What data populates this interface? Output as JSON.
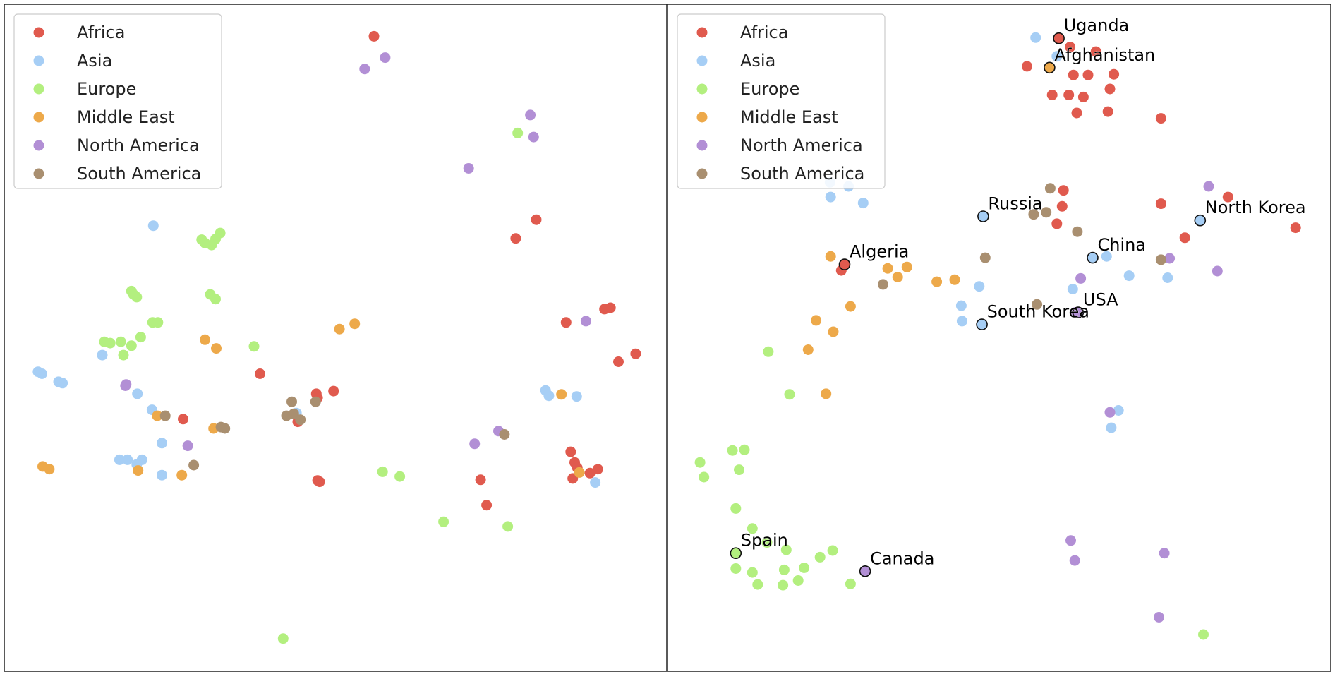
{
  "categories": [
    {
      "key": "africa",
      "label": "Africa",
      "color": "#e05a4e"
    },
    {
      "key": "asia",
      "label": "Asia",
      "color": "#a6cef5"
    },
    {
      "key": "europe",
      "label": "Europe",
      "color": "#b3ef7f"
    },
    {
      "key": "middle_east",
      "label": "Middle East",
      "color": "#eda94a"
    },
    {
      "key": "north_america",
      "label": "North America",
      "color": "#b28fd5"
    },
    {
      "key": "south_america",
      "label": "South America",
      "color": "#a98f70"
    }
  ],
  "chart_data": [
    {
      "type": "scatter",
      "title": "",
      "xlabel": "",
      "ylabel": "",
      "xlim": [
        0,
        1
      ],
      "ylim": [
        0,
        1
      ],
      "axes_ticks": "none",
      "legend_position": "top-left",
      "series": [
        {
          "category": "africa",
          "points": [
            [
              0.558,
              0.952
            ],
            [
              0.772,
              0.649
            ],
            [
              0.803,
              0.677
            ],
            [
              0.848,
              0.523
            ],
            [
              0.906,
              0.543
            ],
            [
              0.915,
              0.545
            ],
            [
              0.927,
              0.464
            ],
            [
              0.953,
              0.476
            ],
            [
              0.386,
              0.446
            ],
            [
              0.27,
              0.378
            ],
            [
              0.473,
              0.41
            ],
            [
              0.497,
              0.42
            ],
            [
              0.443,
              0.374
            ],
            [
              0.471,
              0.416
            ],
            [
              0.855,
              0.329
            ],
            [
              0.861,
              0.313
            ],
            [
              0.865,
              0.305
            ],
            [
              0.896,
              0.303
            ],
            [
              0.884,
              0.297
            ],
            [
              0.858,
              0.289
            ],
            [
              0.719,
              0.287
            ],
            [
              0.473,
              0.286
            ],
            [
              0.476,
              0.284
            ],
            [
              0.728,
              0.249
            ]
          ]
        },
        {
          "category": "asia",
          "points": [
            [
              0.225,
              0.668
            ],
            [
              0.148,
              0.474
            ],
            [
              0.051,
              0.449
            ],
            [
              0.057,
              0.446
            ],
            [
              0.082,
              0.434
            ],
            [
              0.088,
              0.432
            ],
            [
              0.201,
              0.416
            ],
            [
              0.223,
              0.392
            ],
            [
              0.441,
              0.387
            ],
            [
              0.817,
              0.421
            ],
            [
              0.822,
              0.413
            ],
            [
              0.864,
              0.412
            ],
            [
              0.238,
              0.342
            ],
            [
              0.208,
              0.317
            ],
            [
              0.174,
              0.317
            ],
            [
              0.186,
              0.317
            ],
            [
              0.2,
              0.31
            ],
            [
              0.238,
              0.294
            ],
            [
              0.892,
              0.283
            ]
          ]
        },
        {
          "category": "europe",
          "points": [
            [
              0.775,
              0.807
            ],
            [
              0.298,
              0.647
            ],
            [
              0.303,
              0.642
            ],
            [
              0.313,
              0.639
            ],
            [
              0.319,
              0.648
            ],
            [
              0.326,
              0.657
            ],
            [
              0.192,
              0.57
            ],
            [
              0.2,
              0.561
            ],
            [
              0.195,
              0.565
            ],
            [
              0.311,
              0.565
            ],
            [
              0.319,
              0.558
            ],
            [
              0.224,
              0.523
            ],
            [
              0.232,
              0.523
            ],
            [
              0.206,
              0.501
            ],
            [
              0.176,
              0.494
            ],
            [
              0.151,
              0.494
            ],
            [
              0.16,
              0.492
            ],
            [
              0.192,
              0.488
            ],
            [
              0.18,
              0.474
            ],
            [
              0.377,
              0.487
            ],
            [
              0.571,
              0.299
            ],
            [
              0.597,
              0.292
            ],
            [
              0.663,
              0.224
            ],
            [
              0.76,
              0.217
            ],
            [
              0.421,
              0.049
            ]
          ]
        },
        {
          "category": "middle_east",
          "points": [
            [
              0.506,
              0.513
            ],
            [
              0.529,
              0.521
            ],
            [
              0.303,
              0.497
            ],
            [
              0.32,
              0.484
            ],
            [
              0.841,
              0.415
            ],
            [
              0.231,
              0.383
            ],
            [
              0.316,
              0.364
            ],
            [
              0.058,
              0.307
            ],
            [
              0.068,
              0.303
            ],
            [
              0.202,
              0.301
            ],
            [
              0.268,
              0.294
            ],
            [
              0.868,
              0.298
            ]
          ]
        },
        {
          "category": "north_america",
          "points": [
            [
              0.575,
              0.92
            ],
            [
              0.544,
              0.903
            ],
            [
              0.794,
              0.834
            ],
            [
              0.799,
              0.801
            ],
            [
              0.701,
              0.754
            ],
            [
              0.878,
              0.525
            ],
            [
              0.184,
              0.43
            ],
            [
              0.183,
              0.428
            ],
            [
              0.746,
              0.36
            ],
            [
              0.71,
              0.341
            ],
            [
              0.277,
              0.338
            ]
          ]
        },
        {
          "category": "south_america",
          "points": [
            [
              0.243,
              0.383
            ],
            [
              0.327,
              0.366
            ],
            [
              0.333,
              0.364
            ],
            [
              0.434,
              0.404
            ],
            [
              0.47,
              0.404
            ],
            [
              0.437,
              0.386
            ],
            [
              0.426,
              0.383
            ],
            [
              0.447,
              0.377
            ],
            [
              0.755,
              0.355
            ],
            [
              0.286,
              0.309
            ]
          ]
        }
      ]
    },
    {
      "type": "scatter",
      "title": "",
      "xlabel": "",
      "ylabel": "",
      "xlim": [
        0,
        1
      ],
      "ylim": [
        0,
        1
      ],
      "axes_ticks": "none",
      "legend_position": "top-left",
      "series": [
        {
          "category": "africa",
          "points": [
            [
              0.59,
              0.949
            ],
            [
              0.607,
              0.936
            ],
            [
              0.646,
              0.929
            ],
            [
              0.542,
              0.907
            ],
            [
              0.612,
              0.894
            ],
            [
              0.634,
              0.894
            ],
            [
              0.673,
              0.895
            ],
            [
              0.667,
              0.873
            ],
            [
              0.58,
              0.864
            ],
            [
              0.605,
              0.864
            ],
            [
              0.627,
              0.861
            ],
            [
              0.617,
              0.837
            ],
            [
              0.664,
              0.839
            ],
            [
              0.744,
              0.829
            ],
            [
              0.597,
              0.721
            ],
            [
              0.595,
              0.697
            ],
            [
              0.587,
              0.671
            ],
            [
              0.744,
              0.701
            ],
            [
              0.845,
              0.711
            ],
            [
              0.947,
              0.665
            ],
            [
              0.78,
              0.65
            ],
            [
              0.262,
              0.601
            ]
          ]
        },
        {
          "category": "asia",
          "points": [
            [
              0.555,
              0.95
            ],
            [
              0.587,
              0.922
            ],
            [
              0.245,
              0.733
            ],
            [
              0.273,
              0.727
            ],
            [
              0.246,
              0.711
            ],
            [
              0.295,
              0.702
            ],
            [
              0.662,
              0.622
            ],
            [
              0.696,
              0.593
            ],
            [
              0.754,
              0.59
            ],
            [
              0.47,
              0.577
            ],
            [
              0.611,
              0.573
            ],
            [
              0.443,
              0.548
            ],
            [
              0.444,
              0.525
            ],
            [
              0.68,
              0.391
            ],
            [
              0.669,
              0.365
            ]
          ]
        },
        {
          "category": "europe",
          "points": [
            [
              0.152,
              0.479
            ],
            [
              0.184,
              0.415
            ],
            [
              0.049,
              0.313
            ],
            [
              0.098,
              0.331
            ],
            [
              0.116,
              0.332
            ],
            [
              0.108,
              0.302
            ],
            [
              0.055,
              0.291
            ],
            [
              0.103,
              0.244
            ],
            [
              0.128,
              0.214
            ],
            [
              0.15,
              0.193
            ],
            [
              0.179,
              0.182
            ],
            [
              0.249,
              0.181
            ],
            [
              0.23,
              0.171
            ],
            [
              0.176,
              0.152
            ],
            [
              0.206,
              0.155
            ],
            [
              0.103,
              0.154
            ],
            [
              0.128,
              0.148
            ],
            [
              0.136,
              0.13
            ],
            [
              0.174,
              0.129
            ],
            [
              0.197,
              0.136
            ],
            [
              0.276,
              0.131
            ],
            [
              0.808,
              0.055
            ]
          ]
        },
        {
          "category": "middle_east",
          "points": [
            [
              0.246,
              0.622
            ],
            [
              0.332,
              0.604
            ],
            [
              0.361,
              0.606
            ],
            [
              0.347,
              0.591
            ],
            [
              0.406,
              0.584
            ],
            [
              0.433,
              0.587
            ],
            [
              0.276,
              0.547
            ],
            [
              0.224,
              0.526
            ],
            [
              0.25,
              0.509
            ],
            [
              0.212,
              0.482
            ],
            [
              0.239,
              0.416
            ]
          ]
        },
        {
          "category": "north_america",
          "points": [
            [
              0.816,
              0.727
            ],
            [
              0.757,
              0.619
            ],
            [
              0.829,
              0.6
            ],
            [
              0.623,
              0.589
            ],
            [
              0.615,
              0.538
            ],
            [
              0.667,
              0.388
            ],
            [
              0.608,
              0.196
            ],
            [
              0.614,
              0.166
            ],
            [
              0.749,
              0.177
            ],
            [
              0.741,
              0.081
            ]
          ]
        },
        {
          "category": "south_america",
          "points": [
            [
              0.577,
              0.724
            ],
            [
              0.571,
              0.688
            ],
            [
              0.552,
              0.685
            ],
            [
              0.618,
              0.659
            ],
            [
              0.479,
              0.62
            ],
            [
              0.744,
              0.617
            ],
            [
              0.325,
              0.58
            ],
            [
              0.557,
              0.55
            ]
          ]
        }
      ],
      "annotations": [
        {
          "label": "Uganda",
          "x": 0.59,
          "y": 0.949,
          "category": "africa"
        },
        {
          "label": "Afghanistan",
          "x": 0.576,
          "y": 0.905,
          "category": "middle_east"
        },
        {
          "label": "Russia",
          "x": 0.476,
          "y": 0.682,
          "category": "asia"
        },
        {
          "label": "North Korea",
          "x": 0.803,
          "y": 0.676,
          "category": "asia"
        },
        {
          "label": "China",
          "x": 0.641,
          "y": 0.62,
          "category": "asia"
        },
        {
          "label": "Algeria",
          "x": 0.267,
          "y": 0.61,
          "category": "africa"
        },
        {
          "label": "USA",
          "x": 0.619,
          "y": 0.538,
          "category": "north_america"
        },
        {
          "label": "South Korea",
          "x": 0.474,
          "y": 0.52,
          "category": "asia"
        },
        {
          "label": "Spain",
          "x": 0.103,
          "y": 0.177,
          "category": "europe"
        },
        {
          "label": "Canada",
          "x": 0.298,
          "y": 0.15,
          "category": "north_america"
        }
      ]
    }
  ]
}
